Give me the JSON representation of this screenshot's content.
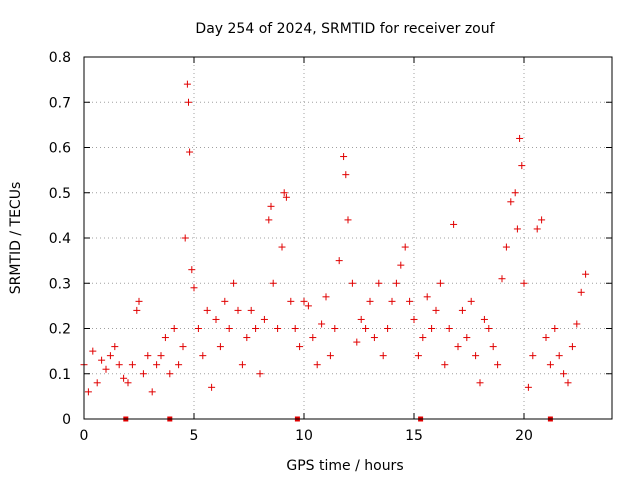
{
  "chart_data": {
    "type": "scatter",
    "title": "Day 254 of 2024, SRMTID for receiver zouf",
    "xlabel": "GPS time / hours",
    "ylabel": "SRMTID / TECUs",
    "xlim": [
      0,
      24
    ],
    "ylim": [
      0,
      0.8
    ],
    "x_ticks": [
      0,
      5,
      10,
      15,
      20
    ],
    "y_ticks": [
      0,
      0.1,
      0.2,
      0.3,
      0.4,
      0.5,
      0.6,
      0.7,
      0.8
    ],
    "x_tick_labels": [
      "0",
      "5",
      "10",
      "15",
      "20"
    ],
    "y_tick_labels": [
      "0",
      "0.1",
      "0.2",
      "0.3",
      "0.4",
      "0.5",
      "0.6",
      "0.7",
      "0.8"
    ],
    "grid": true,
    "marker": "+",
    "marker_color": "#e00000",
    "series": [
      {
        "name": "SRMTID",
        "x": [
          0.0,
          0.2,
          0.4,
          0.6,
          0.8,
          1.0,
          1.2,
          1.4,
          1.6,
          1.8,
          2.0,
          2.2,
          2.4,
          2.5,
          2.7,
          2.9,
          3.1,
          3.3,
          3.5,
          3.7,
          3.9,
          4.1,
          4.3,
          4.5,
          4.6,
          4.7,
          4.75,
          4.8,
          4.9,
          5.0,
          5.2,
          5.4,
          5.6,
          5.8,
          6.0,
          6.2,
          6.4,
          6.6,
          6.8,
          7.0,
          7.2,
          7.4,
          7.6,
          7.8,
          8.0,
          8.2,
          8.4,
          8.5,
          8.6,
          8.8,
          9.0,
          9.1,
          9.2,
          9.4,
          9.6,
          9.8,
          10.0,
          10.2,
          10.4,
          10.6,
          10.8,
          11.0,
          11.2,
          11.4,
          11.6,
          11.8,
          11.9,
          12.0,
          12.2,
          12.4,
          12.6,
          12.8,
          13.0,
          13.2,
          13.4,
          13.6,
          13.8,
          14.0,
          14.2,
          14.4,
          14.6,
          14.8,
          15.0,
          15.2,
          15.4,
          15.6,
          15.8,
          16.0,
          16.2,
          16.4,
          16.6,
          16.8,
          17.0,
          17.2,
          17.4,
          17.6,
          17.8,
          18.0,
          18.2,
          18.4,
          18.6,
          18.8,
          19.0,
          19.2,
          19.4,
          19.6,
          19.7,
          19.8,
          19.9,
          20.0,
          20.2,
          20.4,
          20.6,
          20.8,
          21.0,
          21.2,
          21.4,
          21.6,
          21.8,
          22.0,
          22.2,
          22.4,
          22.6,
          22.8
        ],
        "y": [
          0.12,
          0.06,
          0.15,
          0.08,
          0.13,
          0.11,
          0.14,
          0.16,
          0.12,
          0.09,
          0.08,
          0.12,
          0.24,
          0.26,
          0.1,
          0.14,
          0.06,
          0.12,
          0.14,
          0.18,
          0.1,
          0.2,
          0.12,
          0.16,
          0.4,
          0.74,
          0.7,
          0.59,
          0.33,
          0.29,
          0.2,
          0.14,
          0.24,
          0.07,
          0.22,
          0.16,
          0.26,
          0.2,
          0.3,
          0.24,
          0.12,
          0.18,
          0.24,
          0.2,
          0.1,
          0.22,
          0.44,
          0.47,
          0.3,
          0.2,
          0.38,
          0.5,
          0.49,
          0.26,
          0.2,
          0.16,
          0.26,
          0.25,
          0.18,
          0.12,
          0.21,
          0.27,
          0.14,
          0.2,
          0.35,
          0.58,
          0.54,
          0.44,
          0.3,
          0.17,
          0.22,
          0.2,
          0.26,
          0.18,
          0.3,
          0.14,
          0.2,
          0.26,
          0.3,
          0.34,
          0.38,
          0.26,
          0.22,
          0.14,
          0.18,
          0.27,
          0.2,
          0.24,
          0.3,
          0.12,
          0.2,
          0.43,
          0.16,
          0.24,
          0.18,
          0.26,
          0.14,
          0.08,
          0.22,
          0.2,
          0.16,
          0.12,
          0.31,
          0.38,
          0.48,
          0.5,
          0.42,
          0.62,
          0.56,
          0.3,
          0.07,
          0.14,
          0.42,
          0.44,
          0.18,
          0.12,
          0.2,
          0.14,
          0.1,
          0.08,
          0.16,
          0.21,
          0.28,
          0.32
        ]
      }
    ],
    "ground_markers_x": [
      1.9,
      3.9,
      9.7,
      15.3,
      21.2
    ]
  }
}
